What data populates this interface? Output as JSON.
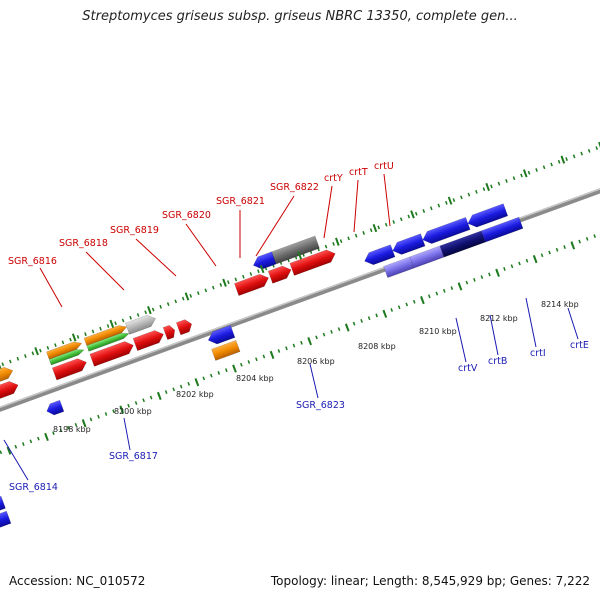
{
  "title": "Streptomyces griseus subsp. griseus NBRC 13350, complete gen...",
  "footer": {
    "accession": "Accession: NC_010572",
    "topology": "Topology: linear; Length: 8,545,929 bp; Genes: 7,222"
  },
  "colors": {
    "forward_gene": "#e01010",
    "reverse_gene": "#1b1be0",
    "orange": "#f08a00",
    "green": "#44c23a",
    "gray": "#b8b8b8",
    "dark_gray": "#6e6e6e",
    "axis": "#8a8a8a",
    "tick": "#1e7a1e",
    "forward_label": "#cc0000",
    "reverse_label": "#1a1ab3"
  },
  "scale_labels": [
    "8198 kbp",
    "8200 kbp",
    "8202 kbp",
    "8204 kbp",
    "8206 kbp",
    "8208 kbp",
    "8210 kbp",
    "8212 kbp",
    "8214 kbp"
  ],
  "forward_labels": [
    "SGR_6816",
    "SGR_6818",
    "SGR_6819",
    "SGR_6820",
    "SGR_6821",
    "SGR_6822",
    "crtY",
    "crtT",
    "crtU"
  ],
  "reverse_labels": [
    "SGR_6814",
    "SGR_6817",
    "SGR_6823",
    "crtV",
    "crtB",
    "crtI",
    "crtE"
  ]
}
